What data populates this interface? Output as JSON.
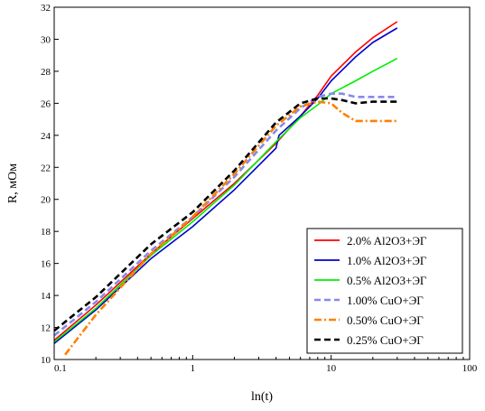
{
  "chart_data": {
    "type": "line",
    "title": "",
    "xlabel": "ln(t)",
    "ylabel": "R, мОм",
    "x_scale": "log",
    "xlim": [
      0.1,
      100
    ],
    "ylim": [
      10,
      32
    ],
    "x_ticks": [
      "0.1",
      "1",
      "10",
      "100"
    ],
    "y_ticks": [
      "10",
      "12",
      "14",
      "16",
      "18",
      "20",
      "22",
      "24",
      "26",
      "28",
      "30",
      "32"
    ],
    "grid": false,
    "legend_position": "bottom-right",
    "series": [
      {
        "name": "2.0% Al2O3+ЭГ",
        "color": "#ff0000",
        "dash": "solid",
        "x": [
          0.1,
          0.2,
          0.5,
          1,
          2,
          4,
          6,
          8,
          10,
          15,
          20,
          30
        ],
        "y": [
          11.2,
          13.4,
          16.6,
          18.8,
          21.0,
          23.5,
          25.2,
          26.5,
          27.7,
          29.2,
          30.1,
          31.1
        ]
      },
      {
        "name": "1.0% Al2O3+ЭГ",
        "color": "#0000cc",
        "dash": "solid",
        "x": [
          0.1,
          0.2,
          0.5,
          1,
          2,
          4,
          4.2,
          6,
          8,
          10,
          15,
          20,
          30
        ],
        "y": [
          11.0,
          13.1,
          16.3,
          18.3,
          20.6,
          23.2,
          24.0,
          25.2,
          26.3,
          27.4,
          28.9,
          29.8,
          30.7
        ]
      },
      {
        "name": "0.5% Al2O3+ЭГ",
        "color": "#00ee00",
        "dash": "solid",
        "x": [
          0.1,
          0.2,
          0.5,
          1,
          2,
          4,
          6,
          8,
          10,
          15,
          20,
          30
        ],
        "y": [
          11.1,
          13.2,
          16.5,
          18.6,
          20.9,
          23.6,
          25.1,
          25.9,
          26.6,
          27.4,
          28.0,
          28.8
        ]
      },
      {
        "name": "1.00% CuO+ЭГ",
        "color": "#8888ee",
        "dash": "dash",
        "x": [
          0.1,
          0.2,
          0.5,
          1,
          2,
          4,
          6,
          8,
          10,
          12,
          15,
          20,
          30
        ],
        "y": [
          11.5,
          13.6,
          16.8,
          18.9,
          21.4,
          24.3,
          25.7,
          26.4,
          26.6,
          26.6,
          26.4,
          26.4,
          26.4
        ]
      },
      {
        "name": "0.50% CuO+ЭГ",
        "color": "#ff8000",
        "dash": "dashdot",
        "x": [
          0.12,
          0.15,
          0.2,
          0.5,
          1,
          2,
          4,
          6,
          8,
          10,
          12,
          15,
          20,
          30
        ],
        "y": [
          10.3,
          11.4,
          12.8,
          16.6,
          18.9,
          21.6,
          24.6,
          25.8,
          26.1,
          26.0,
          25.4,
          24.9,
          24.9,
          24.9
        ]
      },
      {
        "name": "0.25% CuO+ЭГ",
        "color": "#000000",
        "dash": "dash",
        "x": [
          0.1,
          0.2,
          0.5,
          1,
          2,
          4,
          6,
          8,
          10,
          12,
          15,
          20,
          30
        ],
        "y": [
          11.8,
          13.9,
          17.2,
          19.2,
          21.8,
          24.8,
          26.0,
          26.3,
          26.3,
          26.2,
          26.0,
          26.1,
          26.1
        ]
      }
    ]
  }
}
